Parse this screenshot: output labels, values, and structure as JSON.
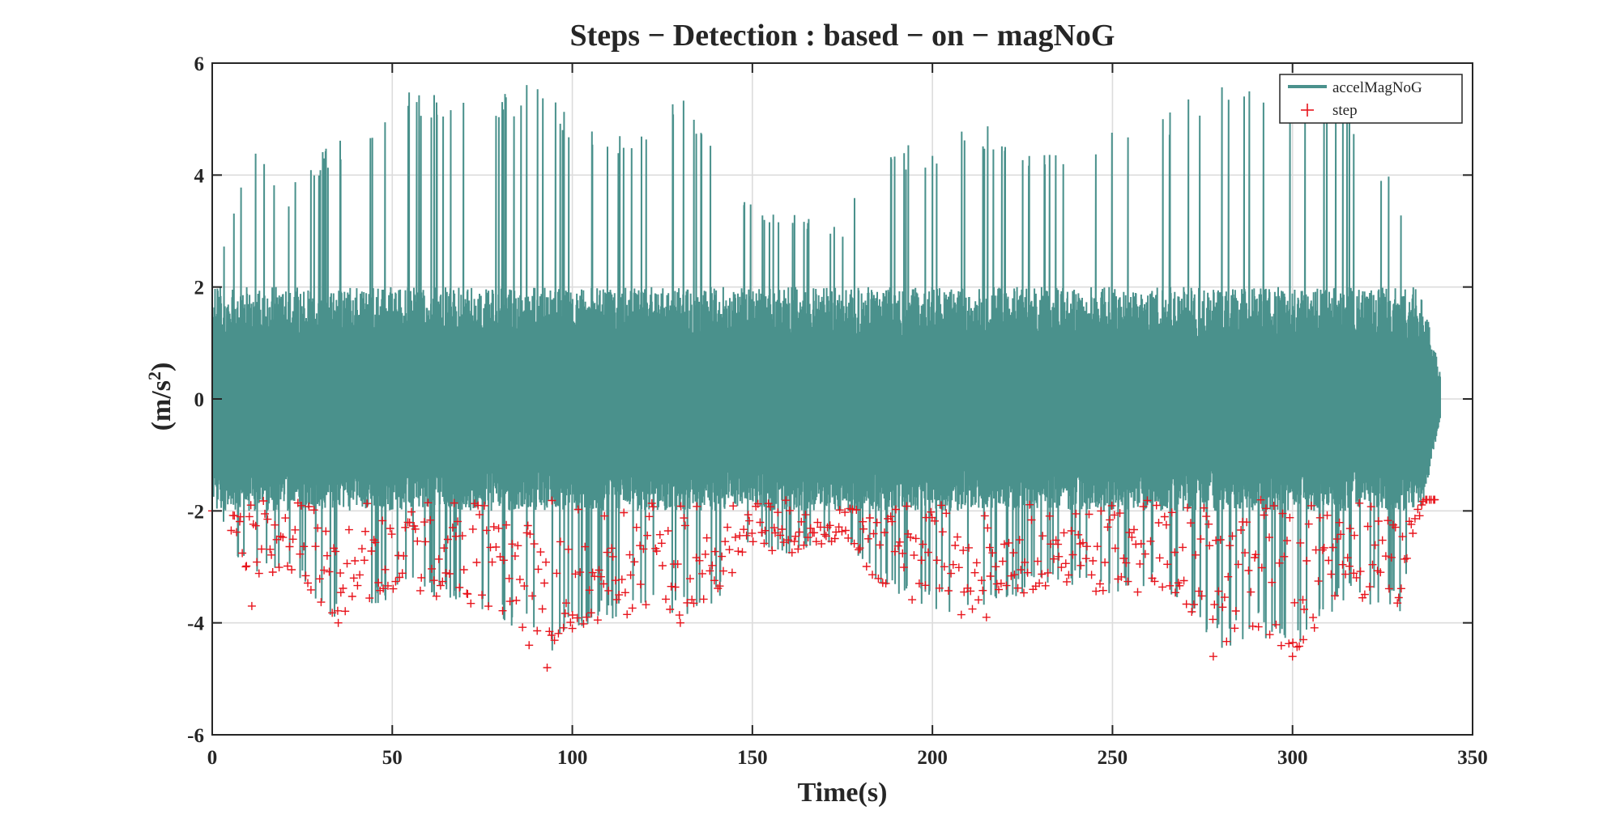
{
  "chart_data": {
    "type": "line",
    "title": "Steps − Detection : based − on − magNoG",
    "xlabel": "Time(s)",
    "ylabel_main": "(m/s",
    "ylabel_sup": "2",
    "ylabel_tail": ")",
    "xlim": [
      0,
      350
    ],
    "ylim": [
      -6,
      6
    ],
    "xticks": [
      0,
      50,
      100,
      150,
      200,
      250,
      300,
      350
    ],
    "yticks": [
      -6,
      -4,
      -2,
      0,
      2,
      4,
      6
    ],
    "grid": true,
    "legend_position": "top-right",
    "series": [
      {
        "name": "accelMagNoG",
        "kind": "line",
        "color": "#4a918c",
        "x_range": [
          0,
          341
        ],
        "approx_samples": 17000,
        "envelope_max": [
          [
            0,
            2
          ],
          [
            5,
            3.4
          ],
          [
            10,
            4.6
          ],
          [
            20,
            3.7
          ],
          [
            35,
            4.7
          ],
          [
            55,
            5.5
          ],
          [
            70,
            5.4
          ],
          [
            85,
            5.6
          ],
          [
            90,
            5.8
          ],
          [
            100,
            5.0
          ],
          [
            120,
            4.8
          ],
          [
            130,
            5.4
          ],
          [
            140,
            4.9
          ],
          [
            150,
            3.5
          ],
          [
            160,
            3.3
          ],
          [
            175,
            3.2
          ],
          [
            185,
            4.7
          ],
          [
            200,
            4.4
          ],
          [
            210,
            5.1
          ],
          [
            220,
            4.8
          ],
          [
            235,
            4.4
          ],
          [
            250,
            4.8
          ],
          [
            265,
            5.2
          ],
          [
            280,
            5.7
          ],
          [
            290,
            5.6
          ],
          [
            300,
            5.2
          ],
          [
            315,
            5.4
          ],
          [
            330,
            3.6
          ],
          [
            341,
            0.5
          ]
        ],
        "envelope_min": [
          [
            0,
            -2.0
          ],
          [
            10,
            -3.2
          ],
          [
            20,
            -3.1
          ],
          [
            35,
            -4.0
          ],
          [
            55,
            -3.5
          ],
          [
            70,
            -3.6
          ],
          [
            90,
            -4.3
          ],
          [
            93,
            -4.8
          ],
          [
            100,
            -4.1
          ],
          [
            120,
            -3.8
          ],
          [
            130,
            -3.9
          ],
          [
            140,
            -3.7
          ],
          [
            150,
            -2.7
          ],
          [
            160,
            -2.8
          ],
          [
            175,
            -2.5
          ],
          [
            185,
            -3.3
          ],
          [
            200,
            -3.8
          ],
          [
            210,
            -3.9
          ],
          [
            220,
            -3.6
          ],
          [
            235,
            -3.3
          ],
          [
            250,
            -3.5
          ],
          [
            265,
            -3.4
          ],
          [
            280,
            -4.5
          ],
          [
            290,
            -4.2
          ],
          [
            300,
            -4.6
          ],
          [
            315,
            -3.6
          ],
          [
            330,
            -3.8
          ],
          [
            341,
            -0.4
          ]
        ]
      },
      {
        "name": "step",
        "kind": "marker",
        "marker": "+",
        "color": "#e8141c",
        "approx_count": 600,
        "notes_x_range": [
          0,
          340
        ],
        "notable_points": [
          [
            0,
            -2.0
          ],
          [
            11,
            -3.7
          ],
          [
            35,
            -4.0
          ],
          [
            88,
            -4.4
          ],
          [
            93,
            -4.8
          ],
          [
            100,
            -4.1
          ],
          [
            130,
            -4.0
          ],
          [
            215,
            -3.9
          ],
          [
            278,
            -4.6
          ],
          [
            300,
            -4.6
          ],
          [
            303,
            -4.3
          ]
        ]
      }
    ]
  }
}
